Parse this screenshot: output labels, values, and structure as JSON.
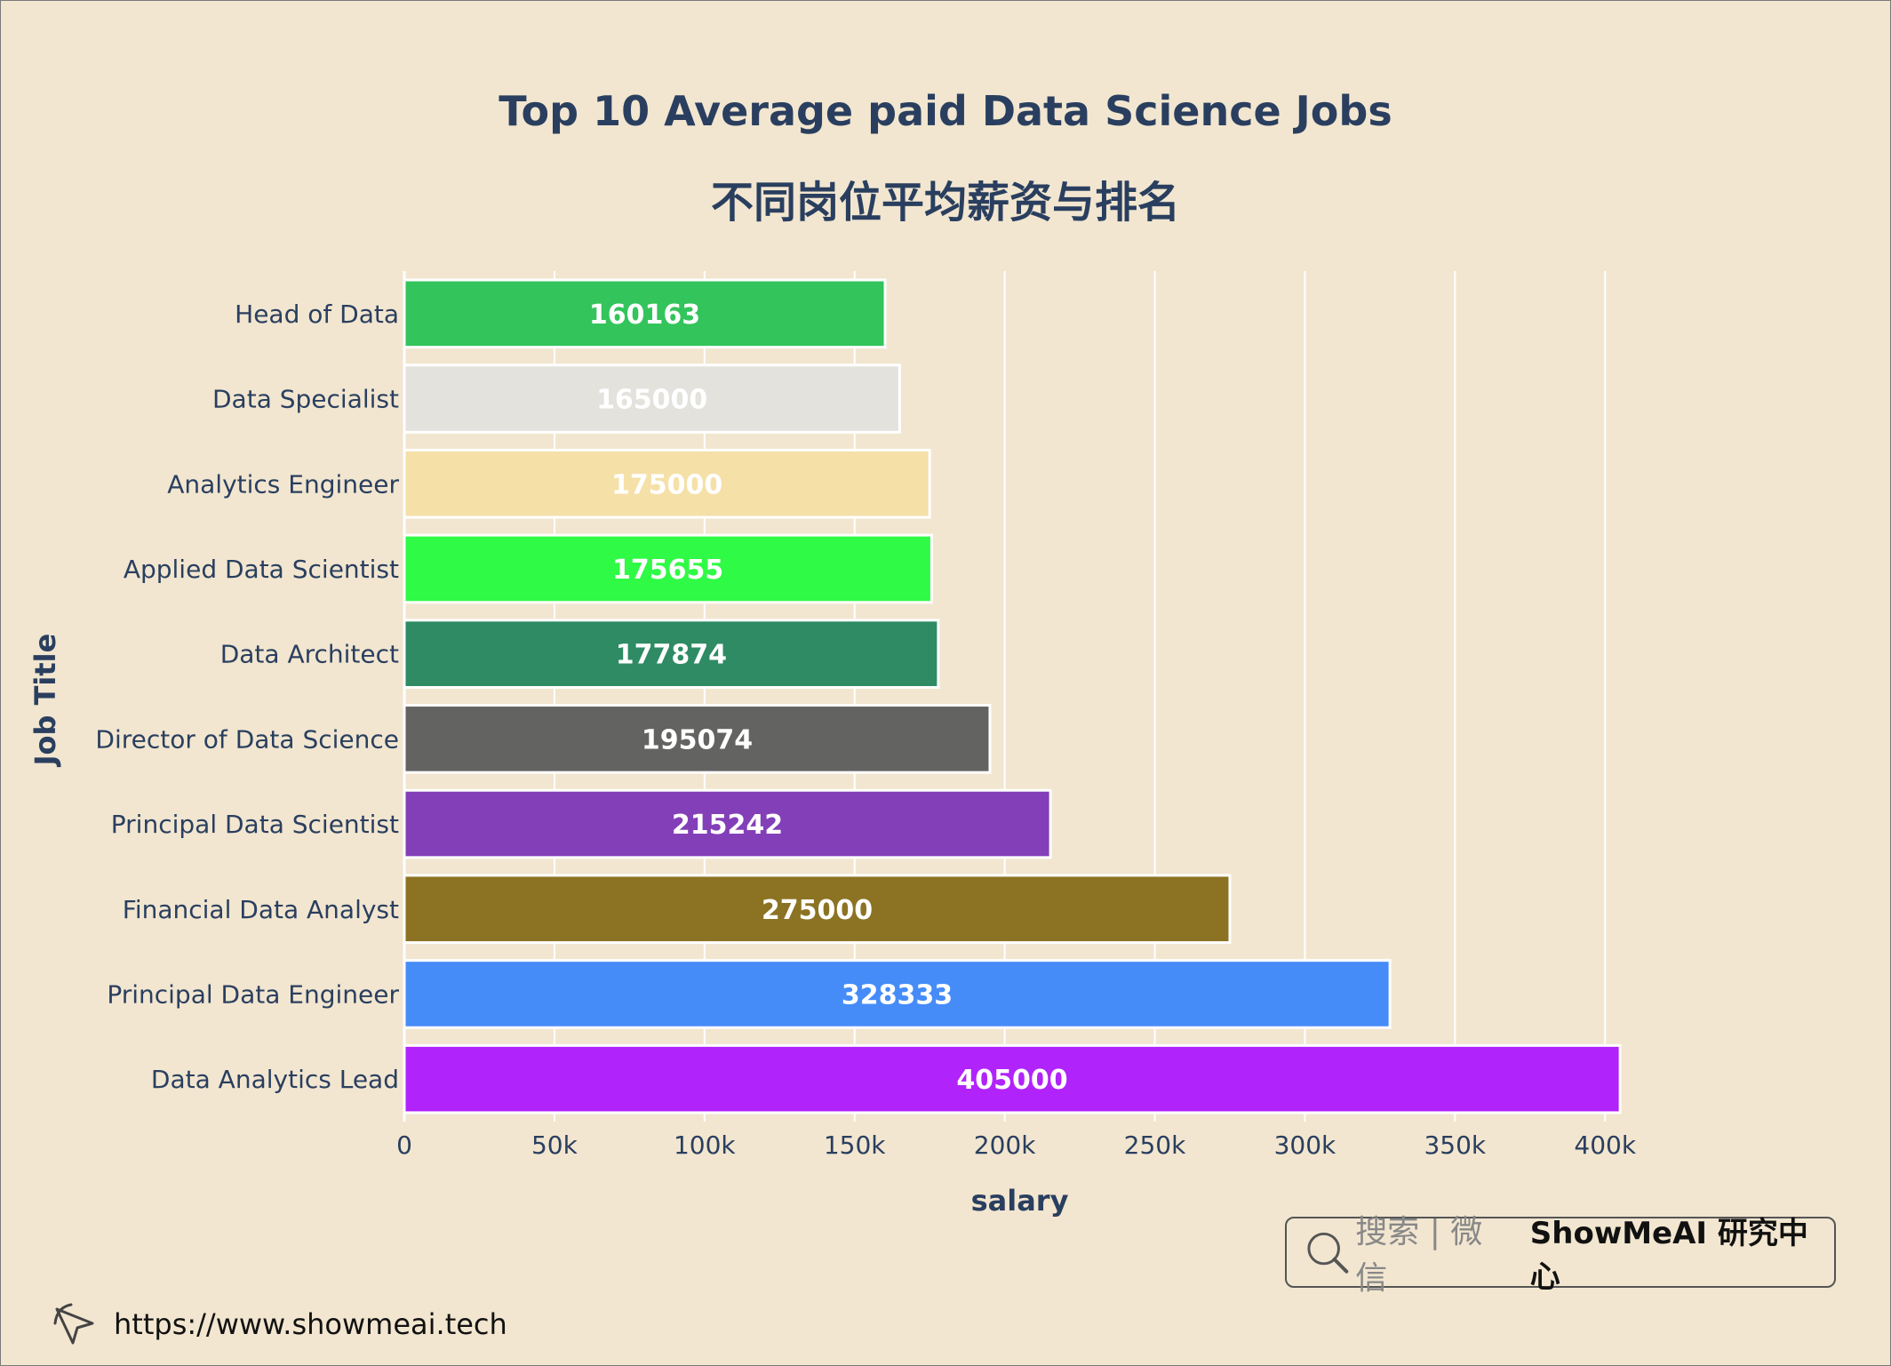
{
  "chart_data": {
    "type": "bar",
    "orientation": "horizontal",
    "title": "Top 10 Average paid Data Science Jobs",
    "subtitle": "不同岗位平均薪资与排名",
    "xlabel": "salary",
    "ylabel": "Job Title",
    "xlim": [
      0,
      410000
    ],
    "xticks": [
      0,
      50000,
      100000,
      150000,
      200000,
      250000,
      300000,
      350000,
      400000
    ],
    "xtick_labels": [
      "0",
      "50k",
      "100k",
      "150k",
      "200k",
      "250k",
      "300k",
      "350k",
      "400k"
    ],
    "grid": true,
    "categories": [
      "Head of Data",
      "Data Specialist",
      "Analytics Engineer",
      "Applied Data Scientist",
      "Data Architect",
      "Director of Data Science",
      "Principal Data Scientist",
      "Financial Data Analyst",
      "Principal Data Engineer",
      "Data Analytics Lead"
    ],
    "values": [
      160163,
      165000,
      175000,
      175655,
      177874,
      195074,
      215242,
      275000,
      328333,
      405000
    ],
    "colors": [
      "#33c45c",
      "#e3e2dd",
      "#f5e0a8",
      "#2ffa45",
      "#2e8b64",
      "#636361",
      "#833fb8",
      "#8c7323",
      "#468cf8",
      "#b123fb"
    ]
  },
  "watermark": {
    "search_hint": "搜索 | 微信",
    "brand": "ShowMeAI 研究中心",
    "url": "https://www.showmeai.tech"
  }
}
